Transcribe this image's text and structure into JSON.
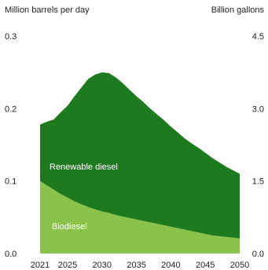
{
  "chart_data": {
    "type": "area",
    "stacked": true,
    "y_left": {
      "label": "Million barrels per day",
      "range": [
        0,
        0.3
      ],
      "ticks": [
        "0.0",
        "0.1",
        "0.2",
        "0.3"
      ]
    },
    "y_right": {
      "label": "Billion gallons",
      "range": [
        0,
        4.5
      ],
      "ticks": [
        "0.0",
        "1.5",
        "3.0",
        "4.5"
      ]
    },
    "x": [
      2021,
      2022,
      2023,
      2024,
      2025,
      2026,
      2027,
      2028,
      2029,
      2030,
      2031,
      2032,
      2033,
      2034,
      2035,
      2036,
      2037,
      2038,
      2039,
      2040,
      2041,
      2042,
      2043,
      2044,
      2045,
      2046,
      2047,
      2048,
      2049,
      2050
    ],
    "x_ticks": [
      "2021",
      "2025",
      "2030",
      "2035",
      "2040",
      "2045",
      "2050"
    ],
    "xlim": [
      2021,
      2050
    ],
    "series": [
      {
        "name": "Biodiesel",
        "color": "#8bc34a",
        "values": [
          0.1,
          0.094,
          0.088,
          0.082,
          0.077,
          0.072,
          0.068,
          0.064,
          0.061,
          0.058,
          0.056,
          0.053,
          0.051,
          0.049,
          0.047,
          0.045,
          0.043,
          0.041,
          0.039,
          0.037,
          0.035,
          0.033,
          0.031,
          0.029,
          0.027,
          0.025,
          0.024,
          0.023,
          0.022,
          0.021
        ]
      },
      {
        "name": "Renewable diesel",
        "color": "#1e7a1e",
        "values": [
          0.078,
          0.088,
          0.097,
          0.113,
          0.127,
          0.145,
          0.161,
          0.177,
          0.186,
          0.192,
          0.193,
          0.19,
          0.184,
          0.177,
          0.17,
          0.164,
          0.157,
          0.151,
          0.145,
          0.138,
          0.132,
          0.126,
          0.121,
          0.117,
          0.112,
          0.107,
          0.102,
          0.097,
          0.093,
          0.089
        ]
      }
    ],
    "grid": false,
    "legend": "inline"
  }
}
